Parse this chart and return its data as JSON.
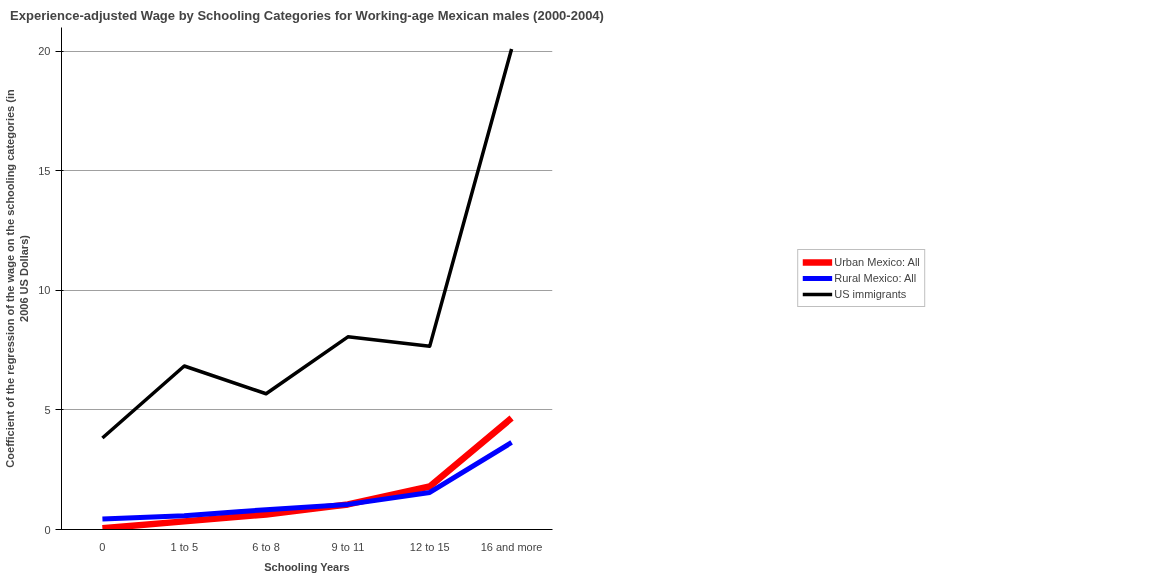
{
  "chart_data": {
    "type": "line",
    "title": "Experience-adjusted Wage by Schooling Categories for Working-age Mexican males (2000-2004)",
    "xlabel": "Schooling Years",
    "ylabel": "Coefficient of the regression of the wage on the schooling categories (in 2006 US Dollars)",
    "categories": [
      "0",
      "1 to 5",
      "6 to 8",
      "9 to 11",
      "12 to 15",
      "16 and more"
    ],
    "series": [
      {
        "name": "Urban Mexico: All",
        "color": "#ff0000",
        "values": [
          0.05,
          0.34,
          0.63,
          1.05,
          1.8,
          4.66
        ]
      },
      {
        "name": "Rural Mexico: All",
        "color": "#0000ff",
        "values": [
          0.44,
          0.58,
          0.83,
          1.05,
          1.55,
          3.64
        ]
      },
      {
        "name": "US immigrants",
        "color": "#000000",
        "values": [
          3.83,
          6.84,
          5.68,
          8.06,
          7.67,
          20.1
        ]
      }
    ],
    "ylim": [
      0,
      21
    ],
    "yticks": [
      0,
      5,
      10,
      15,
      20
    ],
    "grid": "y",
    "legend": "right",
    "marker": "none",
    "line_style": "solid"
  }
}
